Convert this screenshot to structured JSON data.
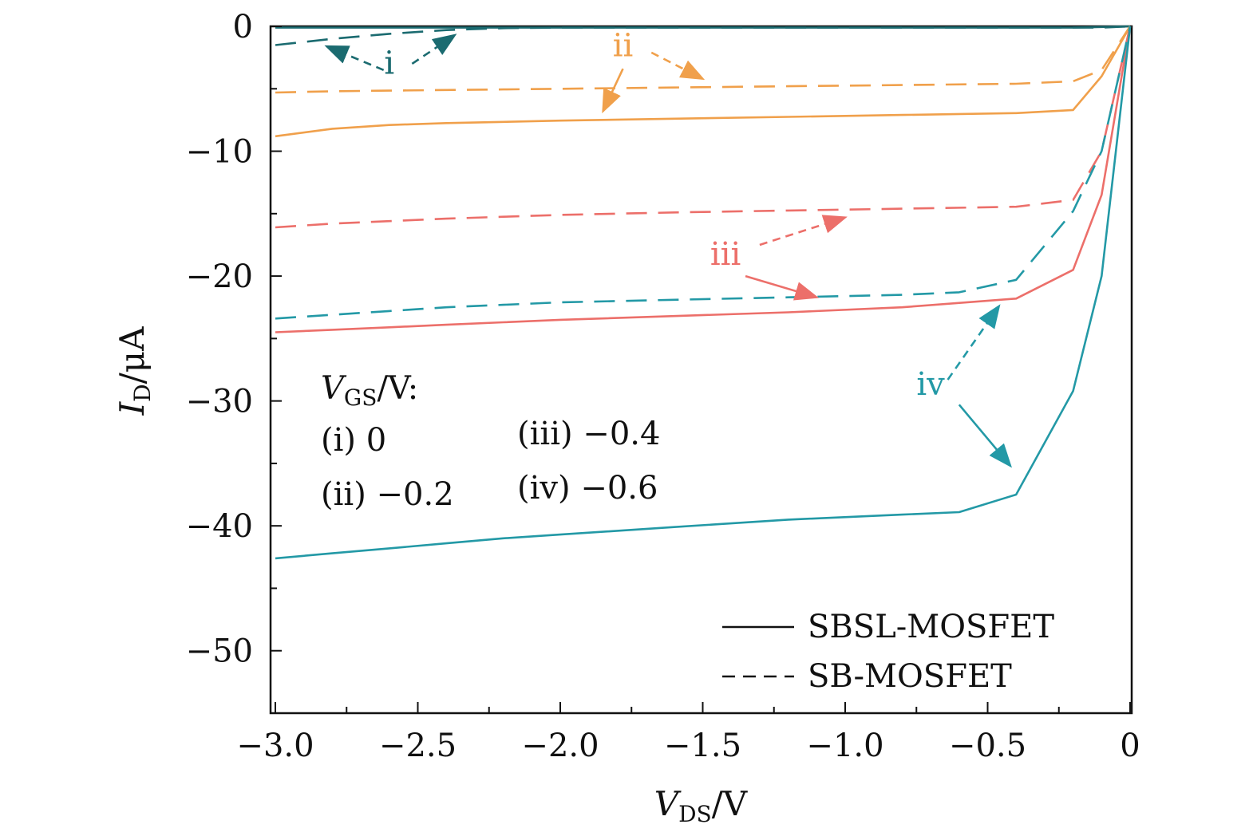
{
  "chart_data": {
    "type": "line",
    "xlabel": {
      "main": "V",
      "sub": "DS",
      "unit": "/V"
    },
    "ylabel": {
      "main": "I",
      "sub": "D",
      "unit": "/μA"
    },
    "xlim": [
      -3.0,
      0
    ],
    "ylim": [
      -55,
      0
    ],
    "x_ticks": [
      {
        "value": -3.0,
        "label": "−3.0"
      },
      {
        "value": -2.5,
        "label": "−2.5"
      },
      {
        "value": -2.0,
        "label": "−2.0"
      },
      {
        "value": -1.5,
        "label": "−1.5"
      },
      {
        "value": -1.0,
        "label": "−1.0"
      },
      {
        "value": -0.5,
        "label": "−0.5"
      },
      {
        "value": 0,
        "label": "0"
      }
    ],
    "y_ticks": [
      {
        "value": 0,
        "label": "0"
      },
      {
        "value": -10,
        "label": "−10"
      },
      {
        "value": -20,
        "label": "−20"
      },
      {
        "value": -30,
        "label": "−30"
      },
      {
        "value": -40,
        "label": "−40"
      },
      {
        "value": -50,
        "label": "−50"
      }
    ],
    "series": [
      {
        "key": "i-sb",
        "style": "dashed",
        "color": "#1b6b70",
        "x": [
          -3.0,
          -2.8,
          -2.6,
          -2.4,
          -2.2,
          -2.0,
          -1.6,
          -1.2,
          -0.8,
          -0.4,
          -0.2,
          -0.1,
          0
        ],
        "y": [
          -1.5,
          -1.0,
          -0.6,
          -0.3,
          -0.15,
          -0.1,
          -0.1,
          -0.1,
          -0.1,
          -0.1,
          -0.1,
          -0.1,
          0
        ]
      },
      {
        "key": "i-sbsl",
        "style": "solid",
        "color": "#1b6b70",
        "x": [
          -3.0,
          -2.8,
          -2.6,
          -2.4,
          -2.2,
          -2.0,
          -1.6,
          -1.2,
          -0.8,
          -0.4,
          -0.2,
          -0.1,
          0
        ],
        "y": [
          -0.1,
          -0.1,
          -0.1,
          -0.1,
          -0.1,
          -0.1,
          -0.1,
          -0.1,
          -0.1,
          -0.1,
          -0.1,
          -0.05,
          0
        ]
      },
      {
        "key": "ii-sb",
        "style": "dashed",
        "color": "#f0a04b",
        "x": [
          -3.0,
          -2.8,
          -2.6,
          -2.4,
          -2.2,
          -2.0,
          -1.6,
          -1.2,
          -0.8,
          -0.4,
          -0.2,
          -0.1,
          0
        ],
        "y": [
          -5.3,
          -5.2,
          -5.15,
          -5.1,
          -5.05,
          -5.0,
          -4.9,
          -4.8,
          -4.7,
          -4.6,
          -4.4,
          -3.5,
          0
        ]
      },
      {
        "key": "ii-sbsl",
        "style": "solid",
        "color": "#f0a04b",
        "x": [
          -3.0,
          -2.8,
          -2.6,
          -2.4,
          -2.2,
          -2.0,
          -1.6,
          -1.2,
          -0.8,
          -0.4,
          -0.2,
          -0.1,
          0
        ],
        "y": [
          -8.8,
          -8.2,
          -7.9,
          -7.75,
          -7.65,
          -7.55,
          -7.4,
          -7.25,
          -7.1,
          -6.95,
          -6.7,
          -4.0,
          0
        ]
      },
      {
        "key": "iii-sb",
        "style": "dashed",
        "color": "#ec6f6a",
        "x": [
          -3.0,
          -2.8,
          -2.6,
          -2.4,
          -2.2,
          -2.0,
          -1.6,
          -1.2,
          -0.8,
          -0.4,
          -0.2,
          -0.1,
          0
        ],
        "y": [
          -16.1,
          -15.8,
          -15.6,
          -15.4,
          -15.25,
          -15.1,
          -14.9,
          -14.75,
          -14.6,
          -14.45,
          -13.9,
          -10.0,
          0
        ]
      },
      {
        "key": "iii-sbsl",
        "style": "solid",
        "color": "#ec6f6a",
        "x": [
          -3.0,
          -2.8,
          -2.6,
          -2.4,
          -2.2,
          -2.0,
          -1.6,
          -1.2,
          -0.8,
          -0.4,
          -0.2,
          -0.1,
          0
        ],
        "y": [
          -24.5,
          -24.3,
          -24.1,
          -23.9,
          -23.7,
          -23.5,
          -23.2,
          -22.9,
          -22.5,
          -21.8,
          -19.5,
          -13.5,
          0
        ]
      },
      {
        "key": "iv-sb",
        "style": "dashed",
        "color": "#2399a6",
        "x": [
          -3.0,
          -2.8,
          -2.6,
          -2.4,
          -2.2,
          -2.0,
          -1.6,
          -1.2,
          -0.8,
          -0.6,
          -0.4,
          -0.2,
          -0.1,
          0
        ],
        "y": [
          -23.4,
          -23.1,
          -22.8,
          -22.5,
          -22.3,
          -22.1,
          -21.9,
          -21.7,
          -21.5,
          -21.3,
          -20.3,
          -14.8,
          -10.0,
          0
        ]
      },
      {
        "key": "iv-sbsl",
        "style": "solid",
        "color": "#2399a6",
        "x": [
          -3.0,
          -2.8,
          -2.6,
          -2.4,
          -2.2,
          -2.0,
          -1.6,
          -1.2,
          -0.8,
          -0.6,
          -0.4,
          -0.2,
          -0.1,
          0
        ],
        "y": [
          -42.6,
          -42.2,
          -41.8,
          -41.4,
          -41.0,
          -40.7,
          -40.1,
          -39.5,
          -39.1,
          -38.9,
          -37.5,
          -29.2,
          -20.0,
          0
        ]
      }
    ],
    "annotations": [
      {
        "text": "i",
        "color": "#1b6b70",
        "x": -2.6,
        "y": -3.8
      },
      {
        "text": "ii",
        "color": "#f0a04b",
        "x": -1.78,
        "y": -2.4
      },
      {
        "text": "iii",
        "color": "#ec6f6a",
        "x": -1.42,
        "y": -19.1
      },
      {
        "text": "iv",
        "color": "#2399a6",
        "x": -0.7,
        "y": -29.5
      }
    ],
    "arrows": [
      {
        "color": "#1b6b70",
        "style": "dashed",
        "from": [
          -2.62,
          -3.5
        ],
        "to": [
          -2.82,
          -1.6
        ]
      },
      {
        "color": "#1b6b70",
        "style": "dashed",
        "from": [
          -2.52,
          -3.0
        ],
        "to": [
          -2.37,
          -0.7
        ]
      },
      {
        "color": "#f0a04b",
        "style": "dashed",
        "from": [
          -1.68,
          -2.1
        ],
        "to": [
          -1.5,
          -4.2
        ]
      },
      {
        "color": "#f0a04b",
        "style": "solid",
        "from": [
          -1.78,
          -3.4
        ],
        "to": [
          -1.85,
          -6.8
        ]
      },
      {
        "color": "#ec6f6a",
        "style": "dashed",
        "from": [
          -1.3,
          -17.5
        ],
        "to": [
          -1.0,
          -15.3
        ]
      },
      {
        "color": "#ec6f6a",
        "style": "solid",
        "from": [
          -1.35,
          -20.0
        ],
        "to": [
          -1.1,
          -21.7
        ]
      },
      {
        "color": "#2399a6",
        "style": "dashed",
        "from": [
          -0.64,
          -28.3
        ],
        "to": [
          -0.46,
          -22.4
        ]
      },
      {
        "color": "#2399a6",
        "style": "solid",
        "from": [
          -0.6,
          -30.3
        ],
        "to": [
          -0.42,
          -35.2
        ]
      }
    ],
    "vgs_block": {
      "heading_main": "V",
      "heading_sub": "GS",
      "heading_unit": "/V:",
      "items": [
        {
          "label": "(i) 0"
        },
        {
          "label": "(ii) −0.2"
        },
        {
          "label": "(iii) −0.4"
        },
        {
          "label": "(iv) −0.6"
        }
      ]
    },
    "legend": {
      "placement": "bottom-right",
      "entries": [
        {
          "label": "SBSL-MOSFET",
          "style": "solid"
        },
        {
          "label": "SB-MOSFET",
          "style": "dashed"
        }
      ]
    }
  }
}
